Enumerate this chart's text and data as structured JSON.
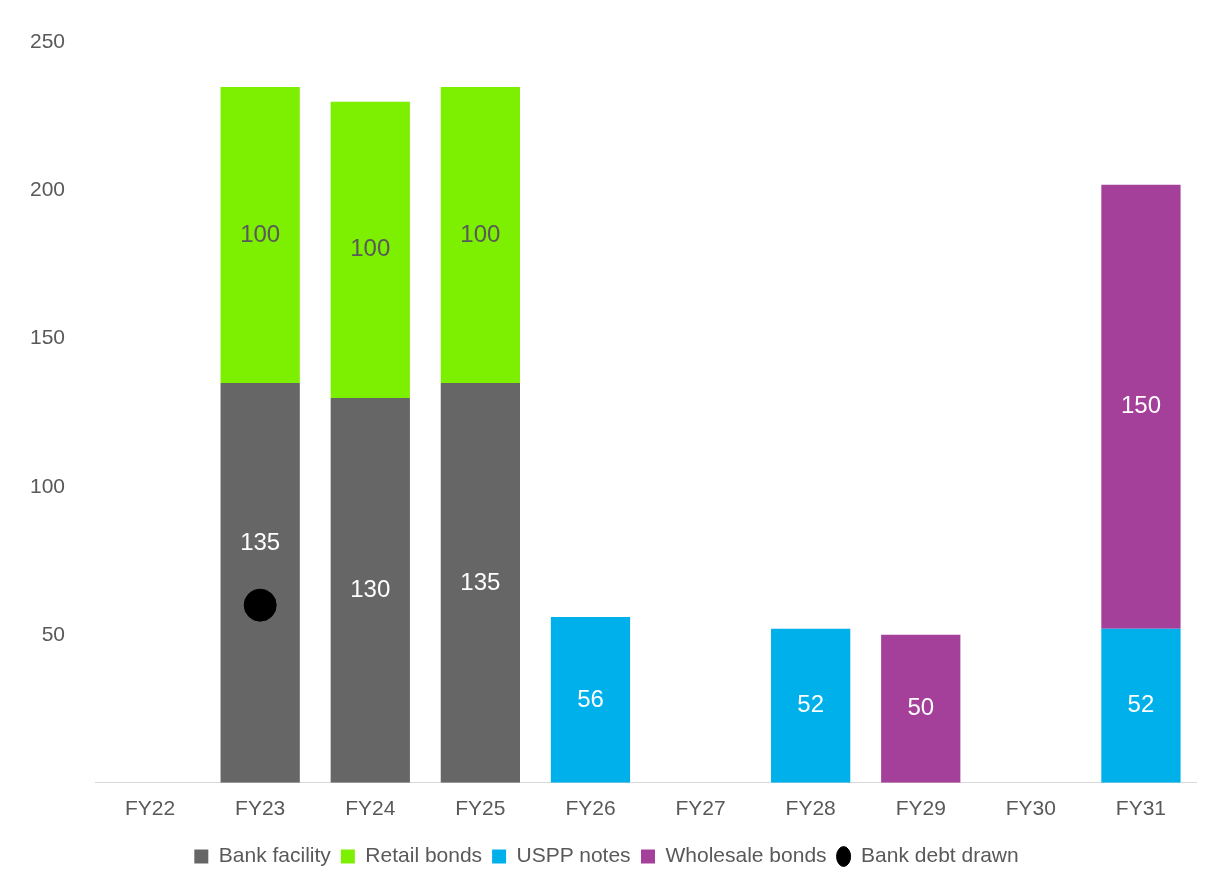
{
  "chart_data": {
    "type": "bar",
    "stacked": true,
    "grid": false,
    "legend": "bottom",
    "categories": [
      "FY22",
      "FY23",
      "FY24",
      "FY25",
      "FY26",
      "FY27",
      "FY28",
      "FY29",
      "FY30",
      "FY31"
    ],
    "ylim": [
      0,
      250
    ],
    "yticks": [
      50,
      100,
      150,
      200,
      250
    ],
    "series": [
      {
        "name": "Bank facility",
        "color": "#666666",
        "values": [
          null,
          135,
          130,
          135,
          null,
          null,
          null,
          null,
          null,
          null
        ],
        "value_labels": [
          null,
          "135",
          "130",
          "135",
          null,
          null,
          null,
          null,
          null,
          null
        ]
      },
      {
        "name": "Retail bonds",
        "color": "#7cf000",
        "values": [
          null,
          100,
          100,
          100,
          null,
          null,
          null,
          null,
          null,
          null
        ],
        "value_labels": [
          null,
          "100",
          "100",
          "100",
          null,
          null,
          null,
          null,
          null,
          null
        ]
      },
      {
        "name": "USPP notes",
        "color": "#00b0eb",
        "values": [
          null,
          null,
          null,
          null,
          56,
          null,
          52,
          null,
          null,
          52
        ],
        "value_labels": [
          null,
          null,
          null,
          null,
          "56",
          null,
          "52",
          null,
          null,
          "52"
        ]
      },
      {
        "name": "Wholesale bonds",
        "color": "#a4409a",
        "values": [
          null,
          null,
          null,
          null,
          null,
          null,
          null,
          50,
          null,
          150
        ],
        "value_labels": [
          null,
          null,
          null,
          null,
          null,
          null,
          null,
          "50",
          null,
          "150"
        ]
      },
      {
        "name": "Bank debt drawn",
        "type": "scatter",
        "marker": "circle",
        "color": "#000000",
        "x": [
          "FY23"
        ],
        "values": [
          60
        ]
      }
    ]
  }
}
